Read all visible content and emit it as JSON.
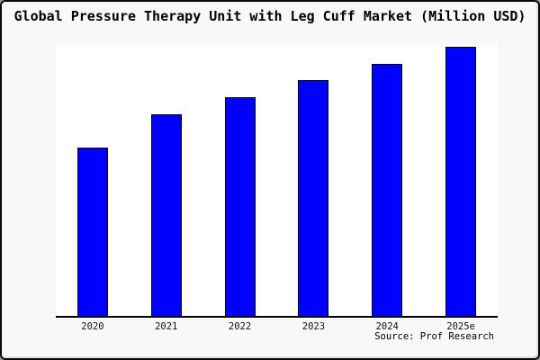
{
  "window": {
    "background": "#f8f8f8",
    "plot_background": "#ffffff",
    "border_color": "#0a0a0a"
  },
  "title": "Global Pressure Therapy Unit with Leg Cuff Market (Million USD)",
  "source": "Source: Prof Research",
  "chart_data": {
    "type": "bar",
    "title": "Global Pressure Therapy Unit with Leg Cuff Market (Million USD)",
    "categories": [
      "2020",
      "2021",
      "2022",
      "2023",
      "2024",
      "2025e"
    ],
    "values": [
      189,
      226,
      245,
      264,
      282,
      301
    ],
    "value_unit": "relative-height-px (no y-axis scale shown)",
    "xlabel": "",
    "ylabel": "",
    "ylim": [
      0,
      304
    ],
    "yticks": [],
    "grid": false,
    "legend": false,
    "bar_color": "#0000ff",
    "bar_border_color": "#000000",
    "axis_line_color": "#000000"
  }
}
